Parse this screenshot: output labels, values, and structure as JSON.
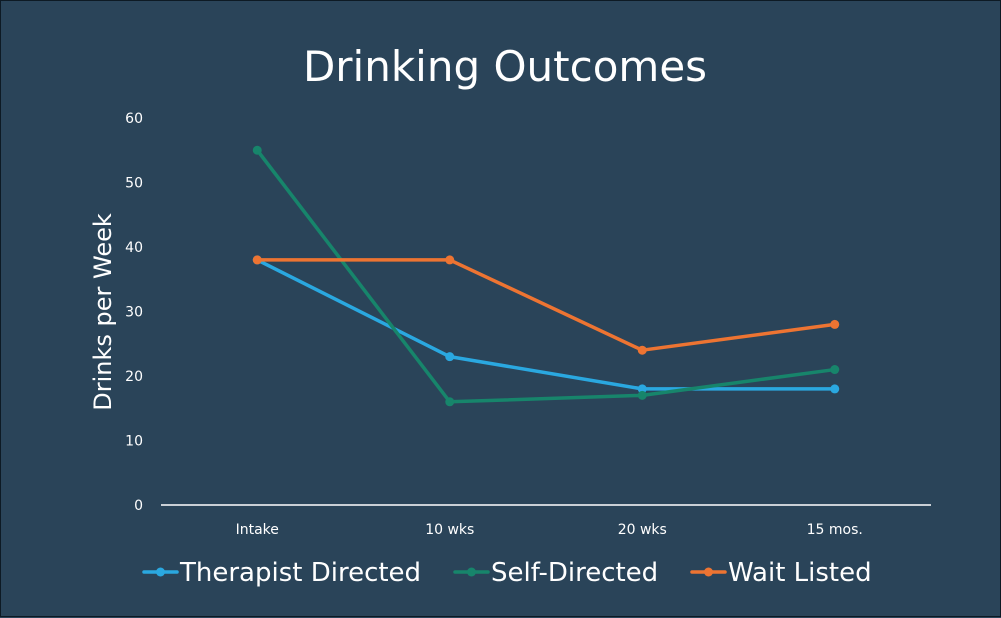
{
  "chart_data": {
    "type": "line",
    "title": "Drinking Outcomes",
    "xlabel": "",
    "ylabel": "Drinks  per Week",
    "categories": [
      "Intake",
      "10 wks",
      "20 wks",
      "15 mos."
    ],
    "ylim": [
      0,
      60
    ],
    "yticks": [
      0,
      10,
      20,
      30,
      40,
      50,
      60
    ],
    "grid": false,
    "legend_position": "bottom",
    "series": [
      {
        "name": "Therapist Directed",
        "color": "#2aa8e0",
        "values": [
          38,
          23,
          18,
          18
        ]
      },
      {
        "name": "Self-Directed",
        "color": "#17856b",
        "values": [
          55,
          16,
          17,
          21
        ]
      },
      {
        "name": "Wait Listed",
        "color": "#ed7432",
        "values": [
          38,
          38,
          24,
          28
        ]
      }
    ]
  }
}
